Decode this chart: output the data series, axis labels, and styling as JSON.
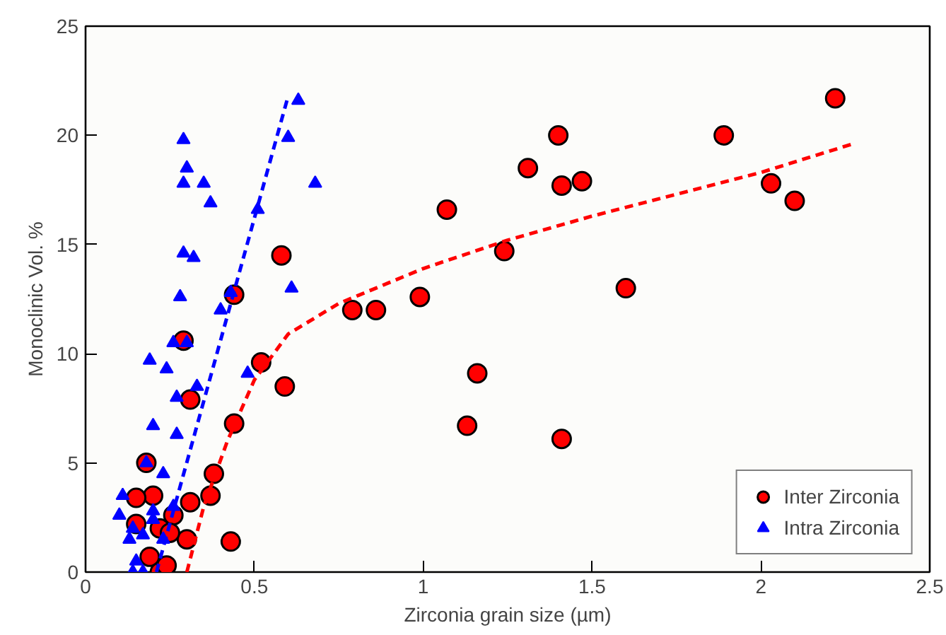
{
  "chart_data": {
    "type": "scatter",
    "xlabel": "Zirconia grain size (µm)",
    "ylabel": "Monoclinic Vol. %",
    "xlim": [
      0,
      2.5
    ],
    "ylim": [
      0,
      25
    ],
    "xticks": [
      0,
      0.5,
      1,
      1.5,
      2,
      2.5
    ],
    "yticks": [
      0,
      5,
      10,
      15,
      20,
      25
    ],
    "grid": false,
    "legend": "bottom right",
    "series": [
      {
        "name": "Inter Zirconia",
        "color": "#ff0000",
        "marker": "circle",
        "x": [
          2.22,
          1.89,
          1.4,
          1.31,
          1.41,
          1.47,
          2.03,
          2.1,
          1.07,
          1.24,
          1.6,
          0.99,
          0.79,
          0.86,
          1.16,
          1.13,
          1.41,
          0.58,
          0.44,
          0.29,
          0.52,
          0.59,
          0.31,
          0.44,
          0.38,
          0.37,
          0.43,
          0.3,
          0.18,
          0.2,
          0.31,
          0.26,
          0.15,
          0.22,
          0.25,
          0.19,
          0.22,
          0.24,
          0.15
        ],
        "values": [
          21.7,
          20,
          20,
          18.5,
          17.7,
          17.9,
          17.8,
          17.0,
          16.6,
          14.7,
          13.0,
          12.6,
          12.0,
          12.0,
          9.1,
          6.7,
          6.1,
          14.5,
          12.7,
          10.6,
          9.6,
          8.5,
          7.9,
          6.8,
          4.5,
          3.5,
          1.4,
          1.5,
          5.0,
          3.5,
          3.2,
          2.6,
          2.2,
          2.0,
          1.8,
          0.7,
          0.0,
          0.3,
          3.4
        ]
      },
      {
        "name": "Intra Zirconia",
        "color": "#0000ff",
        "marker": "triangle",
        "x": [
          0.63,
          0.6,
          0.29,
          0.3,
          0.29,
          0.35,
          0.68,
          0.37,
          0.51,
          0.29,
          0.32,
          0.4,
          0.43,
          0.61,
          0.28,
          0.26,
          0.3,
          0.19,
          0.24,
          0.48,
          0.27,
          0.33,
          0.2,
          0.27,
          0.18,
          0.23,
          0.11,
          0.2,
          0.26,
          0.1,
          0.14,
          0.17,
          0.2,
          0.13,
          0.23,
          0.14,
          0.17,
          0.15
        ],
        "values": [
          21.6,
          19.9,
          19.8,
          18.5,
          17.8,
          17.8,
          17.8,
          16.9,
          16.6,
          14.6,
          14.4,
          12.0,
          12.8,
          13.0,
          12.6,
          10.5,
          10.5,
          9.7,
          9.3,
          9.1,
          8.0,
          8.5,
          6.7,
          6.3,
          5.0,
          4.5,
          3.5,
          2.8,
          3.0,
          2.6,
          2.0,
          1.7,
          2.4,
          1.5,
          1.5,
          0.0,
          0.0,
          0.5
        ]
      },
      {
        "type": "line",
        "color": "#0000ff",
        "line_style": "dashed",
        "marker": "none",
        "x": [
          0.21,
          0.6
        ],
        "values": [
          0,
          21.8
        ]
      },
      {
        "type": "line",
        "color": "#ff0000",
        "line_style": "dashed",
        "marker": "none",
        "x": [
          0.3,
          0.35,
          0.42,
          0.5,
          0.6,
          0.75,
          1,
          1.25,
          1.5,
          1.75,
          2,
          2.27
        ],
        "values": [
          0,
          3,
          6,
          8.8,
          10.9,
          12.3,
          13.9,
          15.2,
          16.3,
          17.3,
          18.3,
          19.6
        ]
      }
    ]
  }
}
